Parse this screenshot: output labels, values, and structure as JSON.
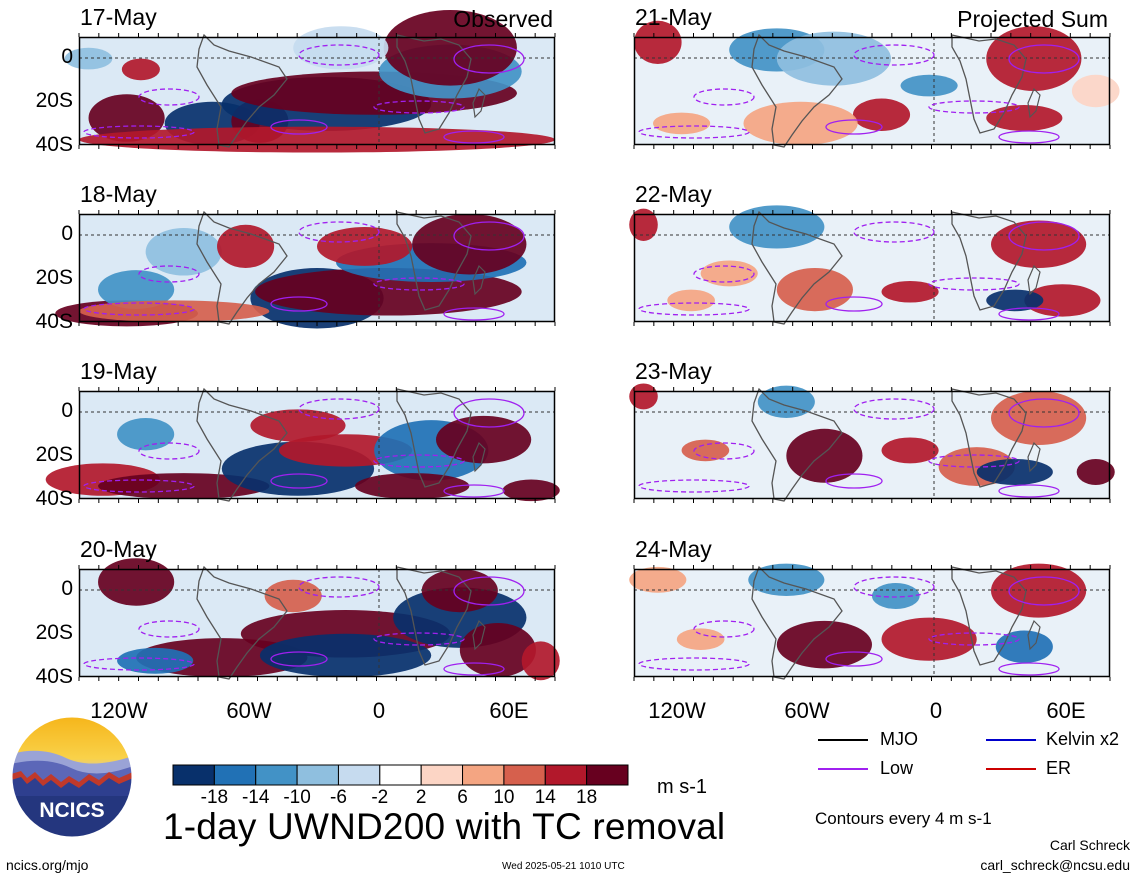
{
  "panels_left": [
    {
      "date": "17-May",
      "tag": "Observed"
    },
    {
      "date": "18-May",
      "tag": ""
    },
    {
      "date": "19-May",
      "tag": ""
    },
    {
      "date": "20-May",
      "tag": ""
    }
  ],
  "panels_right": [
    {
      "date": "21-May",
      "tag": "Projected Sum"
    },
    {
      "date": "22-May",
      "tag": ""
    },
    {
      "date": "23-May",
      "tag": ""
    },
    {
      "date": "24-May",
      "tag": ""
    }
  ],
  "y_ticks": [
    "0",
    "20S",
    "40S"
  ],
  "x_ticks": [
    "120W",
    "60W",
    "0",
    "60E"
  ],
  "colorbar": {
    "colors": [
      "#08306b",
      "#2171b5",
      "#4292c6",
      "#8fbfdf",
      "#c6dbef",
      "#ffffff",
      "#fcd5c5",
      "#f4a582",
      "#d6604d",
      "#b2182b",
      "#67001f"
    ],
    "labels": [
      "-18",
      "-14",
      "-10",
      "-6",
      "-2",
      "2",
      "6",
      "10",
      "14",
      "18"
    ],
    "units": "m s-1"
  },
  "legend": {
    "items": [
      {
        "name": "MJO",
        "color": "#000000"
      },
      {
        "name": "Kelvin x2",
        "color": "#0000cc"
      },
      {
        "name": "Low",
        "color": "#a020f0"
      },
      {
        "name": "ER",
        "color": "#cc0000"
      }
    ],
    "contours": "Contours every 4 m s-1"
  },
  "title": "1-day UWND200 with TC removal",
  "logo_text": "NCICS",
  "footer": {
    "left": "ncics.org/mjo",
    "center": "Wed 2025-05-21 1010 UTC",
    "author": "Carl Schreck",
    "email": "carl_schreck@ncsu.edu"
  }
}
